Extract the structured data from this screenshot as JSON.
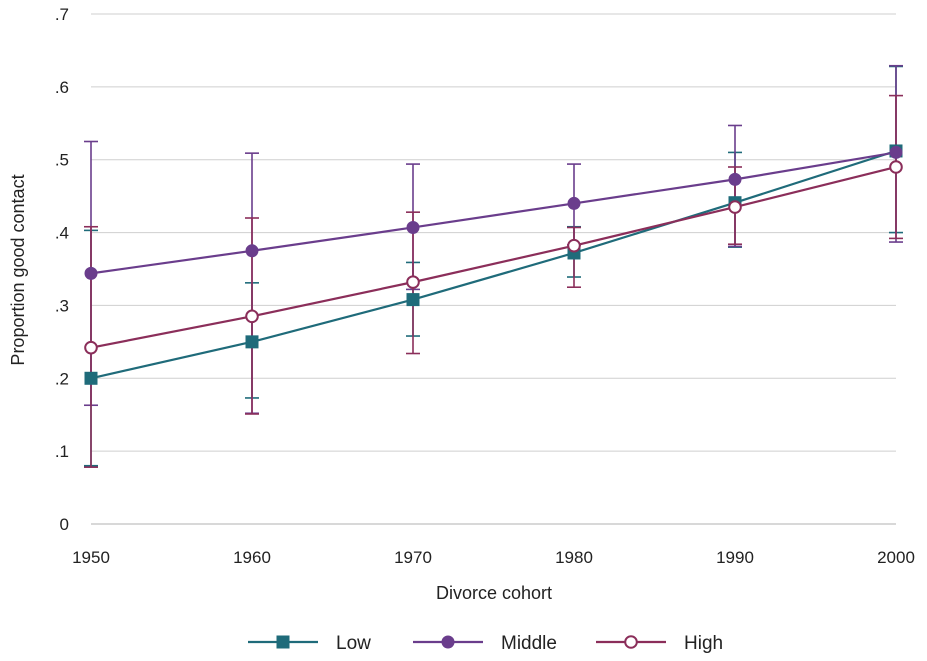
{
  "chart_data": {
    "type": "line",
    "title": "",
    "xlabel": "Divorce cohort",
    "ylabel": "Proportion good contact",
    "xlim": [
      1950,
      2000
    ],
    "ylim": [
      0,
      0.7
    ],
    "x_ticks": [
      1950,
      1960,
      1970,
      1980,
      1990,
      2000
    ],
    "x_tick_labels": [
      "1950",
      "1960",
      "1970",
      "1980",
      "1990",
      "2000"
    ],
    "y_ticks": [
      0,
      0.1,
      0.2,
      0.3,
      0.4,
      0.5,
      0.6,
      0.7
    ],
    "y_tick_labels": [
      "0",
      ".1",
      ".2",
      ".3",
      ".4",
      ".5",
      ".6",
      ".7"
    ],
    "grid": "horizontal",
    "legend_position": "bottom",
    "series": [
      {
        "name": "Low",
        "color": "#1f6b7a",
        "marker": "square",
        "x": [
          1950,
          1960,
          1970,
          1980,
          1990,
          2000
        ],
        "y": [
          0.2,
          0.25,
          0.308,
          0.372,
          0.441,
          0.512
        ],
        "ci_low": [
          0.08,
          0.173,
          0.258,
          0.339,
          0.38,
          0.4
        ],
        "ci_high": [
          0.403,
          0.331,
          0.359,
          0.408,
          0.51,
          0.628
        ]
      },
      {
        "name": "Middle",
        "color": "#6a3d8c",
        "marker": "filled-circle",
        "x": [
          1950,
          1960,
          1970,
          1980,
          1990,
          2000
        ],
        "y": [
          0.344,
          0.375,
          0.407,
          0.44,
          0.473,
          0.51
        ],
        "ci_low": [
          0.163,
          0.152,
          0.322,
          0.383,
          0.381,
          0.387
        ],
        "ci_high": [
          0.525,
          0.509,
          0.494,
          0.494,
          0.547,
          0.629
        ]
      },
      {
        "name": "High",
        "color": "#8b2e5a",
        "marker": "hollow-circle",
        "x": [
          1950,
          1960,
          1970,
          1980,
          1990,
          2000
        ],
        "y": [
          0.242,
          0.285,
          0.332,
          0.382,
          0.435,
          0.49
        ],
        "ci_low": [
          0.078,
          0.151,
          0.234,
          0.325,
          0.384,
          0.392
        ],
        "ci_high": [
          0.408,
          0.42,
          0.428,
          0.407,
          0.49,
          0.588
        ]
      }
    ]
  }
}
